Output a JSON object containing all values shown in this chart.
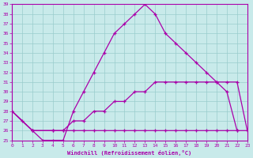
{
  "xlabel": "Windchill (Refroidissement éolien,°C)",
  "bg_color": "#c8eaea",
  "line_color": "#aa00aa",
  "grid_color": "#99cccc",
  "xlim": [
    0,
    23
  ],
  "ylim": [
    25,
    39
  ],
  "yticks": [
    25,
    26,
    27,
    28,
    29,
    30,
    31,
    32,
    33,
    34,
    35,
    36,
    37,
    38,
    39
  ],
  "xticks": [
    0,
    1,
    2,
    3,
    4,
    5,
    6,
    7,
    8,
    9,
    10,
    11,
    12,
    13,
    14,
    15,
    16,
    17,
    18,
    19,
    20,
    21,
    22,
    23
  ],
  "line1_x": [
    0,
    1,
    2,
    3,
    4,
    5,
    6,
    7,
    8,
    9,
    10,
    11,
    12,
    13,
    14,
    15,
    16,
    17,
    18,
    19,
    20,
    21,
    22
  ],
  "line1_y": [
    28,
    27,
    26,
    25,
    25,
    25,
    28,
    30,
    32,
    34,
    36,
    37,
    38,
    39,
    38,
    36,
    35,
    34,
    33,
    32,
    31,
    30,
    26
  ],
  "line2_x": [
    0,
    2,
    4,
    5,
    6,
    7,
    8,
    9,
    10,
    11,
    12,
    13,
    14,
    15,
    16,
    17,
    18,
    19,
    20,
    21,
    22,
    23
  ],
  "line2_y": [
    28,
    26,
    26,
    26,
    27,
    27,
    28,
    28,
    29,
    29,
    30,
    30,
    31,
    31,
    31,
    31,
    31,
    31,
    31,
    31,
    31,
    26
  ],
  "line3_x": [
    0,
    2,
    4,
    5,
    6,
    7,
    8,
    9,
    10,
    11,
    12,
    13,
    14,
    15,
    16,
    17,
    18,
    19,
    20,
    21,
    22,
    23
  ],
  "line3_y": [
    28,
    26,
    26,
    26,
    26,
    26,
    26,
    26,
    26,
    26,
    26,
    26,
    26,
    26,
    26,
    26,
    26,
    26,
    26,
    26,
    26,
    26
  ]
}
